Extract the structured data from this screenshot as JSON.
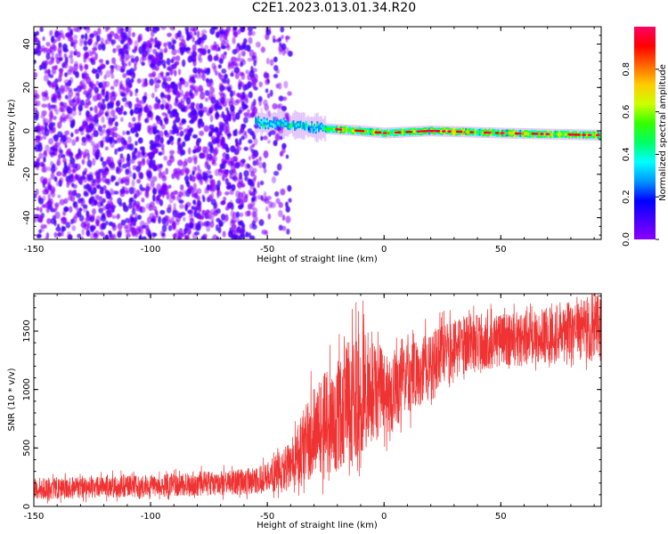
{
  "page": {
    "title": "C2E1.2023.013.01.34.R20"
  },
  "colors": {
    "snr_line": "#ef3333",
    "colormap": [
      "#8a00ff",
      "#4800ff",
      "#0000ff",
      "#0096ff",
      "#00ffff",
      "#00ff66",
      "#33ff00",
      "#ccff00",
      "#ffcc00",
      "#ff6600",
      "#ff0000",
      "#ff0066"
    ]
  },
  "chart_data": [
    {
      "type": "heatmap",
      "title": "",
      "xlabel": "Height of straight line (km)",
      "ylabel": "Frequency (Hz)",
      "xlim": [
        -150,
        93
      ],
      "ylim": [
        -50,
        48
      ],
      "xticks": [
        -150,
        -100,
        -50,
        0,
        50
      ],
      "yticks": [
        -40,
        -20,
        0,
        20,
        40
      ],
      "xtick_labels": [
        "-150",
        "-100",
        "-50",
        "0",
        "50"
      ],
      "ytick_labels": [
        "-40",
        "-20",
        "0",
        "20",
        "40"
      ],
      "colorbar": {
        "label": "Normalized spectral amplitude",
        "range": [
          0,
          1
        ],
        "ticks": [
          0.0,
          0.2,
          0.4,
          0.6,
          0.8
        ],
        "tick_labels": [
          "0.0",
          "0.2",
          "0.4",
          "0.6",
          "0.8"
        ]
      },
      "features": {
        "noise_region_height_km": [
          -150,
          -45
        ],
        "noise_amplitude_range": [
          0.05,
          0.3
        ],
        "signal_band_height_km": [
          -55,
          93
        ],
        "signal_frequency_hz": [
          [
            -55,
            4
          ],
          [
            -40,
            3
          ],
          [
            -25,
            1
          ],
          [
            -10,
            0
          ],
          [
            0,
            -1
          ],
          [
            20,
            0
          ],
          [
            50,
            -1
          ],
          [
            93,
            -2
          ]
        ],
        "peak_amplitude_height_km": [
          -20,
          93
        ]
      },
      "grid": false
    },
    {
      "type": "line",
      "title": "",
      "xlabel": "Height of straight line (km)",
      "ylabel": "SNR (10 * v/v)",
      "xlim": [
        -150,
        93
      ],
      "ylim": [
        0,
        1820
      ],
      "xticks": [
        -150,
        -100,
        -50,
        0,
        50
      ],
      "yticks": [
        0,
        500,
        1000,
        1500
      ],
      "xtick_labels": [
        "-150",
        "-100",
        "-50",
        "0",
        "50"
      ],
      "ytick_labels": [
        "0",
        "500",
        "1000",
        "1500"
      ],
      "series": [
        {
          "envelope_x": [
            -150,
            -120,
            -100,
            -80,
            -60,
            -50,
            -40,
            -35,
            -30,
            -25,
            -20,
            -15,
            -10,
            -5,
            0,
            5,
            10,
            15,
            20,
            25,
            30,
            40,
            50,
            60,
            70,
            80,
            90,
            93
          ],
          "envelope_low": [
            60,
            70,
            80,
            90,
            100,
            110,
            150,
            200,
            250,
            250,
            300,
            350,
            450,
            550,
            600,
            650,
            750,
            850,
            950,
            1050,
            1100,
            1150,
            1200,
            1200,
            1200,
            1250,
            1250,
            1250
          ],
          "envelope_high": [
            240,
            260,
            270,
            300,
            320,
            380,
            550,
            800,
            1050,
            1150,
            1250,
            1450,
            1500,
            1550,
            1300,
            1350,
            1400,
            1450,
            1500,
            1550,
            1600,
            1650,
            1650,
            1650,
            1700,
            1750,
            1820,
            1820
          ]
        }
      ],
      "grid": false
    }
  ]
}
